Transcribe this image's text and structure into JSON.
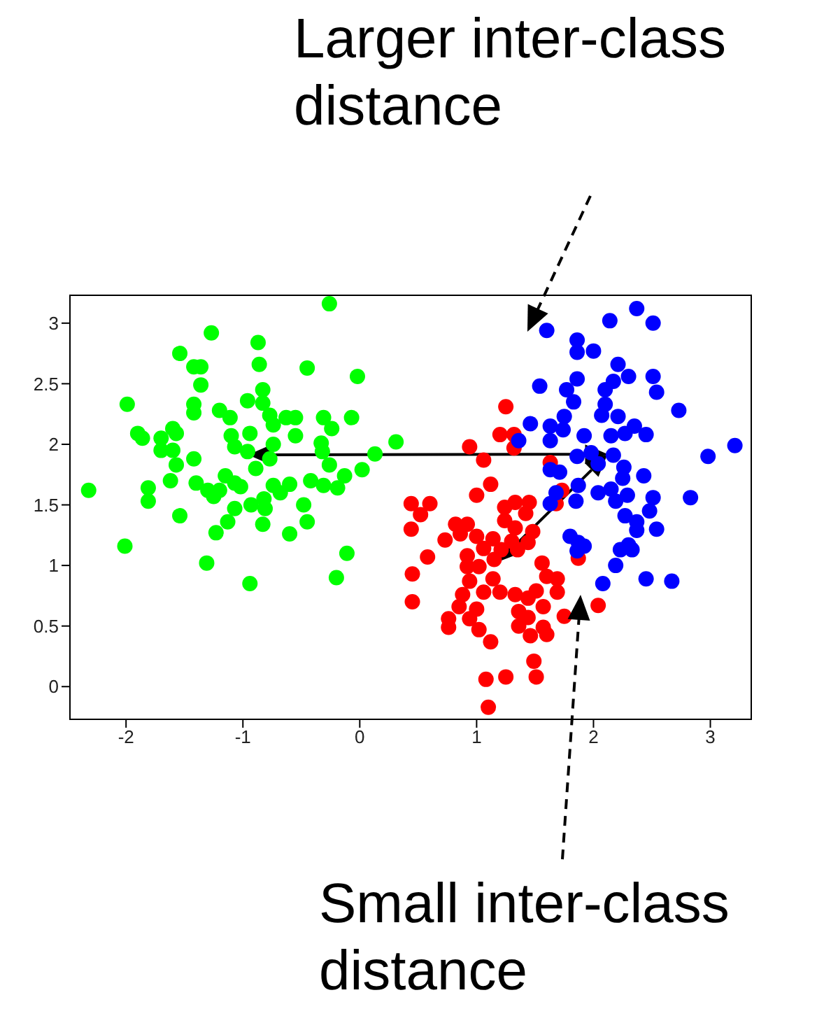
{
  "chart_data": {
    "type": "scatter",
    "marker": "circle",
    "xlim": [
      -2.48,
      3.35
    ],
    "ylim": [
      -0.27,
      3.23
    ],
    "xticks": [
      -2,
      -1,
      0,
      1,
      2,
      3
    ],
    "yticks": [
      0,
      0.5,
      1,
      1.5,
      2,
      2.5,
      3
    ],
    "annotations": [
      "Larger inter-class distance",
      "Small inter-class distance"
    ],
    "series": [
      {
        "color": "#00ff00",
        "x": [
          -0.26,
          -1.27,
          -0.87,
          -1.54,
          -0.86,
          -1.42,
          -1.36,
          -0.45,
          -0.02,
          -1.36,
          -0.83,
          -0.96,
          -1.99,
          -1.42,
          -0.83,
          -1.42,
          -1.2,
          -0.77,
          -1.11,
          -0.63,
          -0.55,
          -0.31,
          -0.07,
          -0.74,
          -0.24,
          -1.6,
          -1.9,
          -1.86,
          -1.7,
          -1.57,
          -1.1,
          -0.94,
          -0.55,
          -0.33,
          0.31,
          -1.7,
          -1.6,
          -1.07,
          -0.96,
          -0.74,
          -0.32,
          0.13,
          -1.42,
          -0.77,
          -1.57,
          -0.89,
          -0.26,
          0.02,
          -0.13,
          -1.15,
          -1.62,
          -1.4,
          -1.07,
          -0.42,
          -0.74,
          -0.6,
          -0.31,
          -0.19,
          -2.32,
          -1.81,
          -1.3,
          -1.2,
          -1.02,
          -0.68,
          -1.81,
          -1.25,
          -0.82,
          -0.93,
          -0.48,
          -0.81,
          -1.07,
          -1.54,
          -1.13,
          -0.45,
          -0.83,
          -1.23,
          -0.6,
          -2.01,
          -0.11,
          -1.31,
          -0.2,
          -0.94
        ],
        "values": [
          3.16,
          2.92,
          2.84,
          2.75,
          2.66,
          2.64,
          2.64,
          2.63,
          2.56,
          2.49,
          2.45,
          2.36,
          2.33,
          2.33,
          2.34,
          2.26,
          2.28,
          2.24,
          2.22,
          2.22,
          2.22,
          2.22,
          2.22,
          2.16,
          2.13,
          2.13,
          2.09,
          2.05,
          2.05,
          2.09,
          2.07,
          2.09,
          2.07,
          2.01,
          2.02,
          1.95,
          1.95,
          1.98,
          1.94,
          2.0,
          1.94,
          1.92,
          1.88,
          1.88,
          1.83,
          1.8,
          1.83,
          1.79,
          1.74,
          1.74,
          1.7,
          1.68,
          1.68,
          1.7,
          1.66,
          1.67,
          1.66,
          1.64,
          1.62,
          1.64,
          1.62,
          1.62,
          1.65,
          1.6,
          1.53,
          1.57,
          1.55,
          1.5,
          1.5,
          1.47,
          1.47,
          1.41,
          1.36,
          1.36,
          1.34,
          1.27,
          1.26,
          1.16,
          1.1,
          1.02,
          0.9,
          0.85
        ]
      },
      {
        "color": "#ff0000",
        "x": [
          1.25,
          1.2,
          1.32,
          0.94,
          1.32,
          1.06,
          1.63,
          1.12,
          1.0,
          1.73,
          1.68,
          0.44,
          0.6,
          0.52,
          1.33,
          1.45,
          1.24,
          1.42,
          0.44,
          1.24,
          1.33,
          1.48,
          0.82,
          0.92,
          0.73,
          0.86,
          1.0,
          1.14,
          1.3,
          1.44,
          1.06,
          1.21,
          0.58,
          0.92,
          1.15,
          1.35,
          1.02,
          1.56,
          0.45,
          0.92,
          1.6,
          1.69,
          0.94,
          1.14,
          1.06,
          1.2,
          1.51,
          1.69,
          0.45,
          0.88,
          1.33,
          1.44,
          0.85,
          1.0,
          1.57,
          1.36,
          2.04,
          1.75,
          0.76,
          0.94,
          1.44,
          0.76,
          1.36,
          1.02,
          1.57,
          1.6,
          1.46,
          1.12,
          1.49,
          1.51,
          1.25,
          1.08,
          1.1,
          1.87
        ],
        "values": [
          2.31,
          2.08,
          2.08,
          1.98,
          1.97,
          1.87,
          1.85,
          1.67,
          1.58,
          1.62,
          1.51,
          1.51,
          1.51,
          1.42,
          1.52,
          1.52,
          1.48,
          1.43,
          1.3,
          1.37,
          1.31,
          1.28,
          1.34,
          1.34,
          1.21,
          1.26,
          1.24,
          1.22,
          1.2,
          1.19,
          1.14,
          1.13,
          1.07,
          1.08,
          1.05,
          1.13,
          0.99,
          1.02,
          0.93,
          0.99,
          0.91,
          0.89,
          0.87,
          0.89,
          0.78,
          0.78,
          0.79,
          0.78,
          0.7,
          0.76,
          0.76,
          0.73,
          0.66,
          0.64,
          0.66,
          0.62,
          0.67,
          0.58,
          0.56,
          0.56,
          0.57,
          0.49,
          0.5,
          0.47,
          0.49,
          0.43,
          0.42,
          0.37,
          0.21,
          0.08,
          0.08,
          0.06,
          -0.17,
          1.06
        ]
      },
      {
        "color": "#0000ff",
        "x": [
          2.37,
          2.14,
          2.51,
          1.6,
          1.86,
          1.86,
          2.0,
          2.21,
          2.3,
          2.51,
          1.86,
          2.17,
          1.54,
          1.77,
          2.1,
          2.54,
          1.83,
          2.1,
          2.73,
          1.75,
          2.07,
          2.21,
          1.46,
          1.63,
          1.74,
          2.35,
          2.27,
          2.45,
          1.63,
          1.92,
          2.15,
          1.36,
          3.21,
          2.98,
          1.86,
          1.98,
          2.17,
          1.63,
          1.71,
          2.04,
          2.26,
          2.43,
          1.87,
          2.25,
          2.04,
          2.15,
          2.51,
          2.83,
          1.68,
          1.85,
          2.19,
          2.29,
          1.63,
          2.48,
          2.27,
          2.37,
          2.54,
          2.37,
          1.8,
          1.87,
          1.92,
          2.3,
          2.23,
          2.33,
          1.86,
          2.19,
          2.45,
          2.67,
          2.08
        ],
        "values": [
          3.12,
          3.02,
          3.0,
          2.94,
          2.86,
          2.76,
          2.77,
          2.66,
          2.56,
          2.56,
          2.54,
          2.52,
          2.48,
          2.45,
          2.45,
          2.43,
          2.35,
          2.33,
          2.28,
          2.23,
          2.24,
          2.23,
          2.17,
          2.15,
          2.12,
          2.15,
          2.09,
          2.08,
          2.03,
          2.07,
          2.07,
          2.03,
          1.99,
          1.9,
          1.9,
          1.93,
          1.91,
          1.79,
          1.77,
          1.84,
          1.81,
          1.74,
          1.66,
          1.72,
          1.6,
          1.63,
          1.56,
          1.56,
          1.6,
          1.53,
          1.53,
          1.58,
          1.51,
          1.45,
          1.41,
          1.36,
          1.3,
          1.29,
          1.24,
          1.19,
          1.16,
          1.17,
          1.13,
          1.13,
          1.12,
          1.0,
          0.89,
          0.87,
          0.85
        ]
      }
    ]
  }
}
